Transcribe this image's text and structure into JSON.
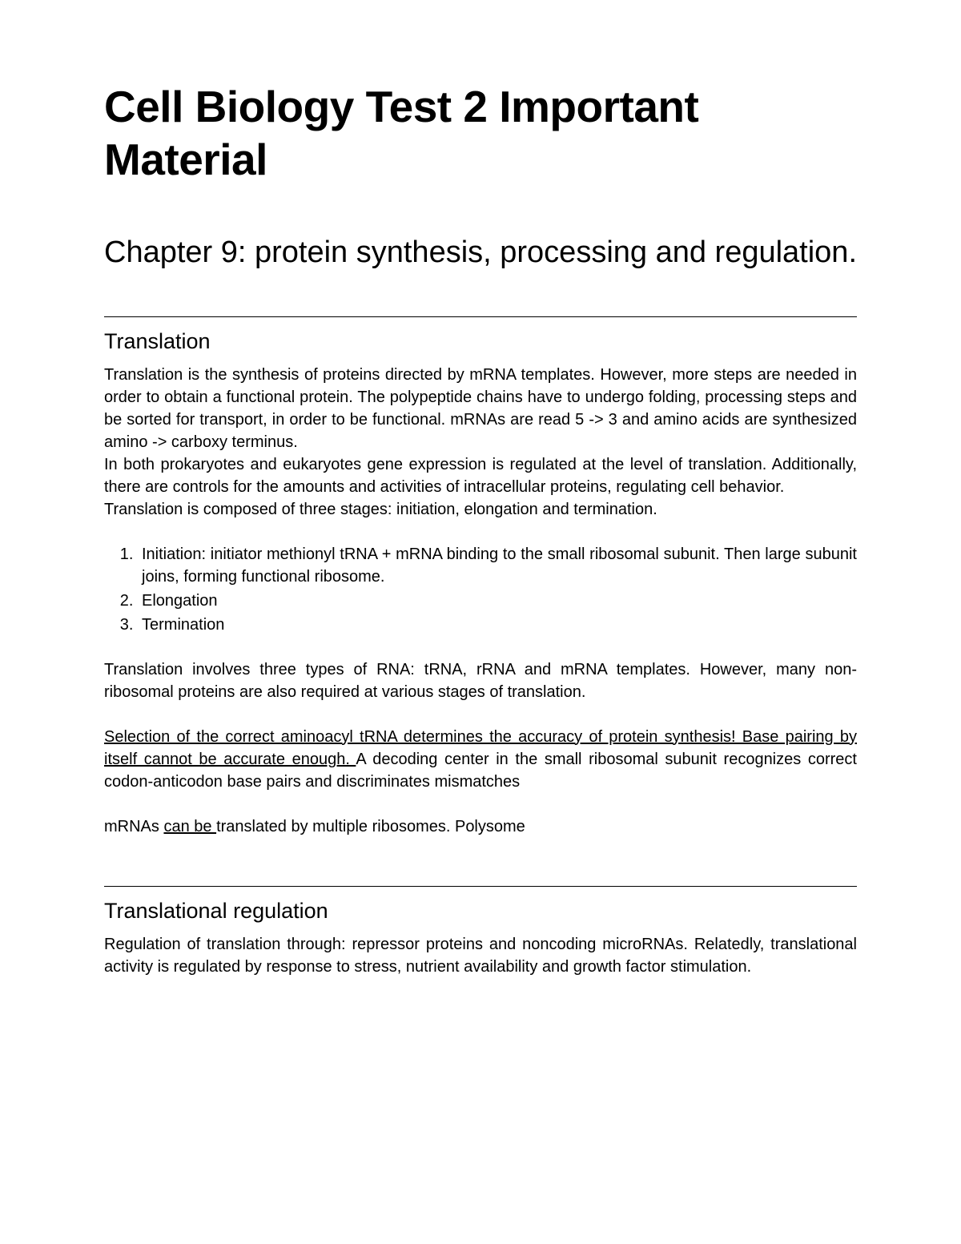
{
  "document": {
    "main_title": "Cell Biology Test 2 Important Material",
    "chapter_title": "Chapter 9: protein synthesis, processing and regulation.",
    "sections": [
      {
        "heading": "Translation",
        "paragraphs": [
          "Translation is the synthesis of proteins directed by mRNA templates. However, more steps are needed in order to obtain a functional protein. The polypeptide chains have to undergo folding, processing steps and be sorted for transport, in order to be functional. mRNAs are read 5 -> 3 and amino acids are synthesized amino -> carboxy terminus.",
          "In both prokaryotes and eukaryotes gene expression is regulated at the level of translation. Additionally, there are controls for the amounts and activities of intracellular proteins, regulating cell behavior.",
          "Translation is composed of three stages: initiation, elongation and termination."
        ],
        "list_items": [
          "Initiation: initiator methionyl tRNA + mRNA binding to the small ribosomal subunit. Then large subunit joins, forming functional ribosome.",
          "Elongation",
          "Termination"
        ],
        "after_list_paragraphs": {
          "p1": "Translation involves three types of RNA: tRNA, rRNA and mRNA templates. However, many non-ribosomal proteins are also required at various stages of translation.",
          "p2_underlined": "Selection of the correct aminoacyl tRNA determines the accuracy of protein synthesis! Base pairing by itself cannot be accurate enough. ",
          "p2_rest": "A decoding center in the small ribosomal subunit recognizes correct codon-anticodon base pairs and discriminates mismatches",
          "p3_before": "mRNAs ",
          "p3_underlined": "can be ",
          "p3_after": "translated by multiple ribosomes. Polysome"
        }
      },
      {
        "heading": "Translational regulation",
        "paragraphs": [
          "Regulation of translation through: repressor proteins and noncoding microRNAs. Relatedly, translational activity is regulated by response to stress, nutrient availability and growth factor stimulation."
        ]
      }
    ]
  },
  "styles": {
    "background_color": "#ffffff",
    "text_color": "#000000",
    "main_title_fontsize": 55,
    "chapter_title_fontsize": 38,
    "section_heading_fontsize": 27,
    "body_fontsize": 20
  }
}
